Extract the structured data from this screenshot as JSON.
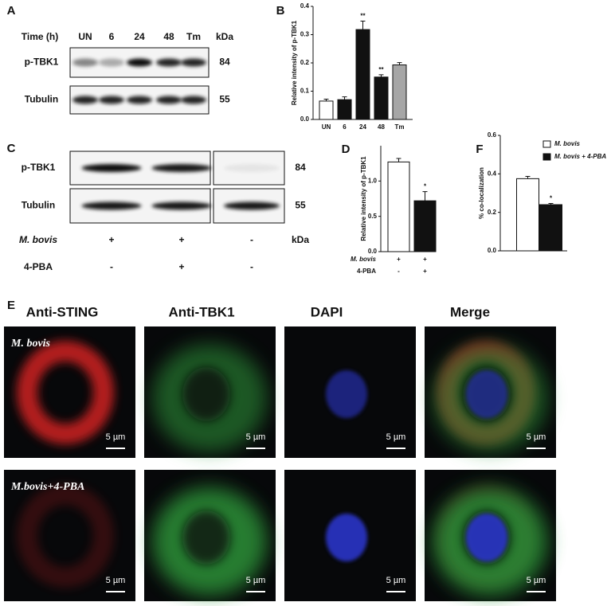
{
  "panel_letters": [
    "A",
    "B",
    "C",
    "D",
    "E",
    "F"
  ],
  "blot_a": {
    "time_label": "Time (h)",
    "lanes": [
      "UN",
      "6",
      "24",
      "48",
      "Tm"
    ],
    "kda_label": "kDa",
    "rows": [
      {
        "label": "p-TBK1",
        "kda": "84"
      },
      {
        "label": "Tubulin",
        "kda": "55"
      }
    ]
  },
  "blot_c": {
    "rows": [
      {
        "label": "p-TBK1",
        "kda": "84"
      },
      {
        "label": "Tubulin",
        "kda": "55"
      }
    ],
    "kda_label": "kDa",
    "conditions": [
      {
        "label": "M. bovis",
        "marks": [
          "+",
          "+",
          "-"
        ]
      },
      {
        "label": "4-PBA",
        "marks": [
          "-",
          "+",
          "-"
        ]
      }
    ]
  },
  "microscopy": {
    "columns": [
      "Anti-STING",
      "Anti-TBK1",
      "DAPI",
      "Merge"
    ],
    "rows": [
      "M. bovis",
      "M.bovis+4-PBA"
    ],
    "scale_bar": "5 µm"
  },
  "chart_data": [
    {
      "type": "bar",
      "y_label": "Relative intensity of p-TBK1",
      "categories": [
        "UN",
        "6",
        "24",
        "48",
        "Tm"
      ],
      "values": [
        0.065,
        0.07,
        0.318,
        0.15,
        0.193
      ],
      "errors": [
        0.007,
        0.01,
        0.03,
        0.008,
        0.008
      ],
      "colors": [
        "#ffffff",
        "#111111",
        "#111111",
        "#111111",
        "#a6a6a6"
      ],
      "significance": [
        null,
        null,
        "**",
        "**",
        null
      ],
      "ylim": [
        0,
        0.4
      ],
      "yticks": [
        {
          "value": 0,
          "label": "0.0"
        },
        0.1,
        0.2,
        0.3,
        0.4
      ]
    },
    {
      "type": "bar",
      "y_label": "Relative intensity of p-TBK1",
      "categories": [
        null,
        null
      ],
      "values": [
        1.27,
        0.72
      ],
      "errors": [
        0.05,
        0.13
      ],
      "colors": [
        "#ffffff",
        "#111111"
      ],
      "significance": [
        null,
        "*"
      ],
      "conditions": [
        {
          "label": "M. bovis",
          "marks": [
            "+",
            "+"
          ]
        },
        {
          "label": "4-PBA",
          "marks": [
            "-",
            "+"
          ]
        }
      ],
      "ylim": [
        0,
        1.5
      ],
      "yticks": [
        {
          "value": 0,
          "label": "0.0"
        },
        0.5,
        {
          "value": 1,
          "label": "1.0"
        }
      ]
    },
    {
      "type": "bar",
      "y_label": "% co-localization",
      "categories": [
        null
      ],
      "series": [
        {
          "name": "M. bovis",
          "color": "#ffffff",
          "values": [
            0.375
          ],
          "errors": [
            0.012
          ]
        },
        {
          "name": "M. bovis + 4-PBA",
          "color": "#111111",
          "values": [
            0.24
          ],
          "errors": [
            0.006
          ],
          "significance": [
            "*"
          ]
        }
      ],
      "legend": "top-right",
      "ylim": [
        0,
        0.6
      ],
      "yticks": [
        {
          "value": 0,
          "label": "0.0"
        },
        0.2,
        0.4,
        0.6
      ]
    }
  ]
}
